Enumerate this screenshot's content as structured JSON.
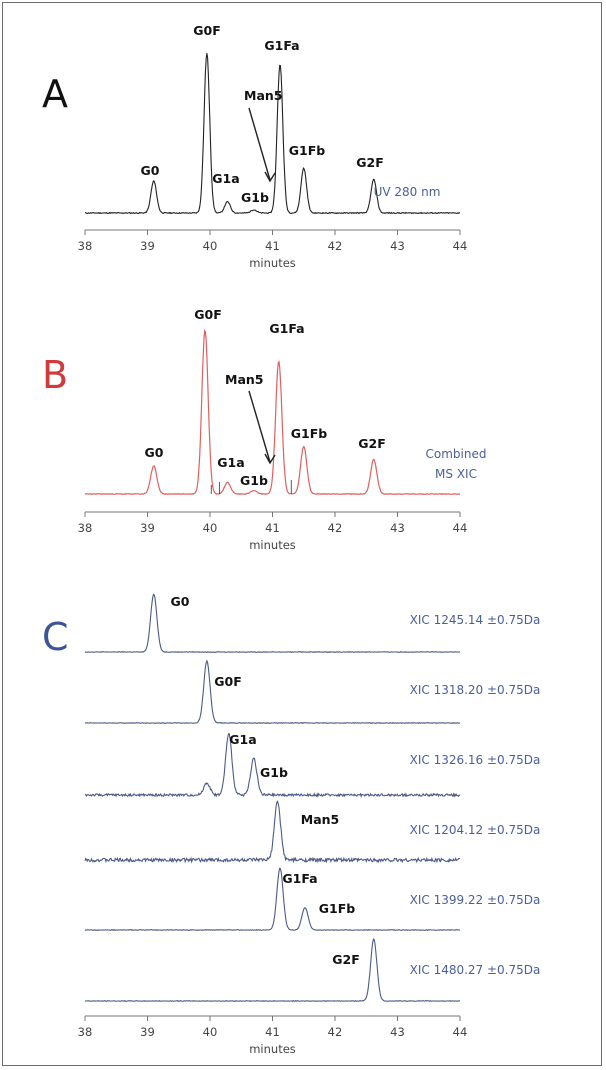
{
  "chart_data": [
    {
      "type": "line",
      "panel": "A",
      "panel_color": "#111111",
      "line_color": "#222222",
      "annotation": "UV 280 nm",
      "xlabel": "minutes",
      "xlim": [
        38,
        44
      ],
      "x_ticks": [
        38,
        39,
        40,
        41,
        42,
        43,
        44
      ],
      "ylim": [
        0,
        1
      ],
      "peaks": [
        {
          "name": "G0",
          "x": 39.1,
          "height": 0.2
        },
        {
          "name": "G0F",
          "x": 39.95,
          "height": 1.0
        },
        {
          "name": "G1a",
          "x": 40.28,
          "height": 0.07
        },
        {
          "name": "G1b",
          "x": 40.7,
          "height": 0.02
        },
        {
          "name": "G1Fa",
          "x": 41.12,
          "height": 0.93
        },
        {
          "name": "G1Fb",
          "x": 41.5,
          "height": 0.28
        },
        {
          "name": "G2F",
          "x": 42.62,
          "height": 0.21
        }
      ],
      "arrow_label": "Man5"
    },
    {
      "type": "line",
      "panel": "B",
      "panel_color": "#d03a3a",
      "line_color": "#e06060",
      "annotation": [
        "Combined",
        "MS XIC"
      ],
      "xlabel": "minutes",
      "xlim": [
        38,
        44
      ],
      "x_ticks": [
        38,
        39,
        40,
        41,
        42,
        43,
        44
      ],
      "ylim": [
        0,
        1
      ],
      "peaks": [
        {
          "name": "G0",
          "x": 39.1,
          "height": 0.17
        },
        {
          "name": "G0F",
          "x": 39.92,
          "height": 1.0
        },
        {
          "name": "G1a",
          "x": 40.28,
          "height": 0.07
        },
        {
          "name": "G1b",
          "x": 40.7,
          "height": 0.02
        },
        {
          "name": "G1Fa",
          "x": 41.1,
          "height": 0.81
        },
        {
          "name": "G1Fb",
          "x": 41.5,
          "height": 0.29
        },
        {
          "name": "G2F",
          "x": 42.62,
          "height": 0.21
        }
      ],
      "arrow_label": "Man5"
    },
    {
      "type": "line",
      "panel": "C",
      "panel_color": "#3d5597",
      "line_color": "#4b5a86",
      "xlabel": "minutes",
      "xlim": [
        38,
        44
      ],
      "x_ticks": [
        38,
        39,
        40,
        41,
        42,
        43,
        44
      ],
      "traces": [
        {
          "xic": "XIC 1245.14 ±0.75Da",
          "noise": 0.01,
          "peaks": [
            {
              "name": "G0",
              "x": 39.1,
              "height": 1.0
            }
          ]
        },
        {
          "xic": "XIC 1318.20 ±0.75Da",
          "noise": 0.01,
          "peaks": [
            {
              "name": "G0F",
              "x": 39.95,
              "height": 1.0
            }
          ]
        },
        {
          "xic": "XIC 1326.16 ±0.75Da",
          "noise": 0.04,
          "peaks": [
            {
              "name": "",
              "x": 39.95,
              "height": 0.2
            },
            {
              "name": "G1a",
              "x": 40.3,
              "height": 1.0
            },
            {
              "name": "G1b",
              "x": 40.7,
              "height": 0.6
            }
          ]
        },
        {
          "xic": "XIC 1204.12 ±0.75Da",
          "noise": 0.06,
          "peaks": [
            {
              "name": "Man5",
              "x": 41.08,
              "height": 1.0
            }
          ]
        },
        {
          "xic": "XIC 1399.22 ±0.75Da",
          "noise": 0.01,
          "peaks": [
            {
              "name": "G1Fa",
              "x": 41.12,
              "height": 1.0
            },
            {
              "name": "G1Fb",
              "x": 41.52,
              "height": 0.36
            }
          ]
        },
        {
          "xic": "XIC 1480.27 ±0.75Da",
          "noise": 0.01,
          "peaks": [
            {
              "name": "G2F",
              "x": 42.62,
              "height": 1.0
            }
          ]
        }
      ]
    }
  ]
}
